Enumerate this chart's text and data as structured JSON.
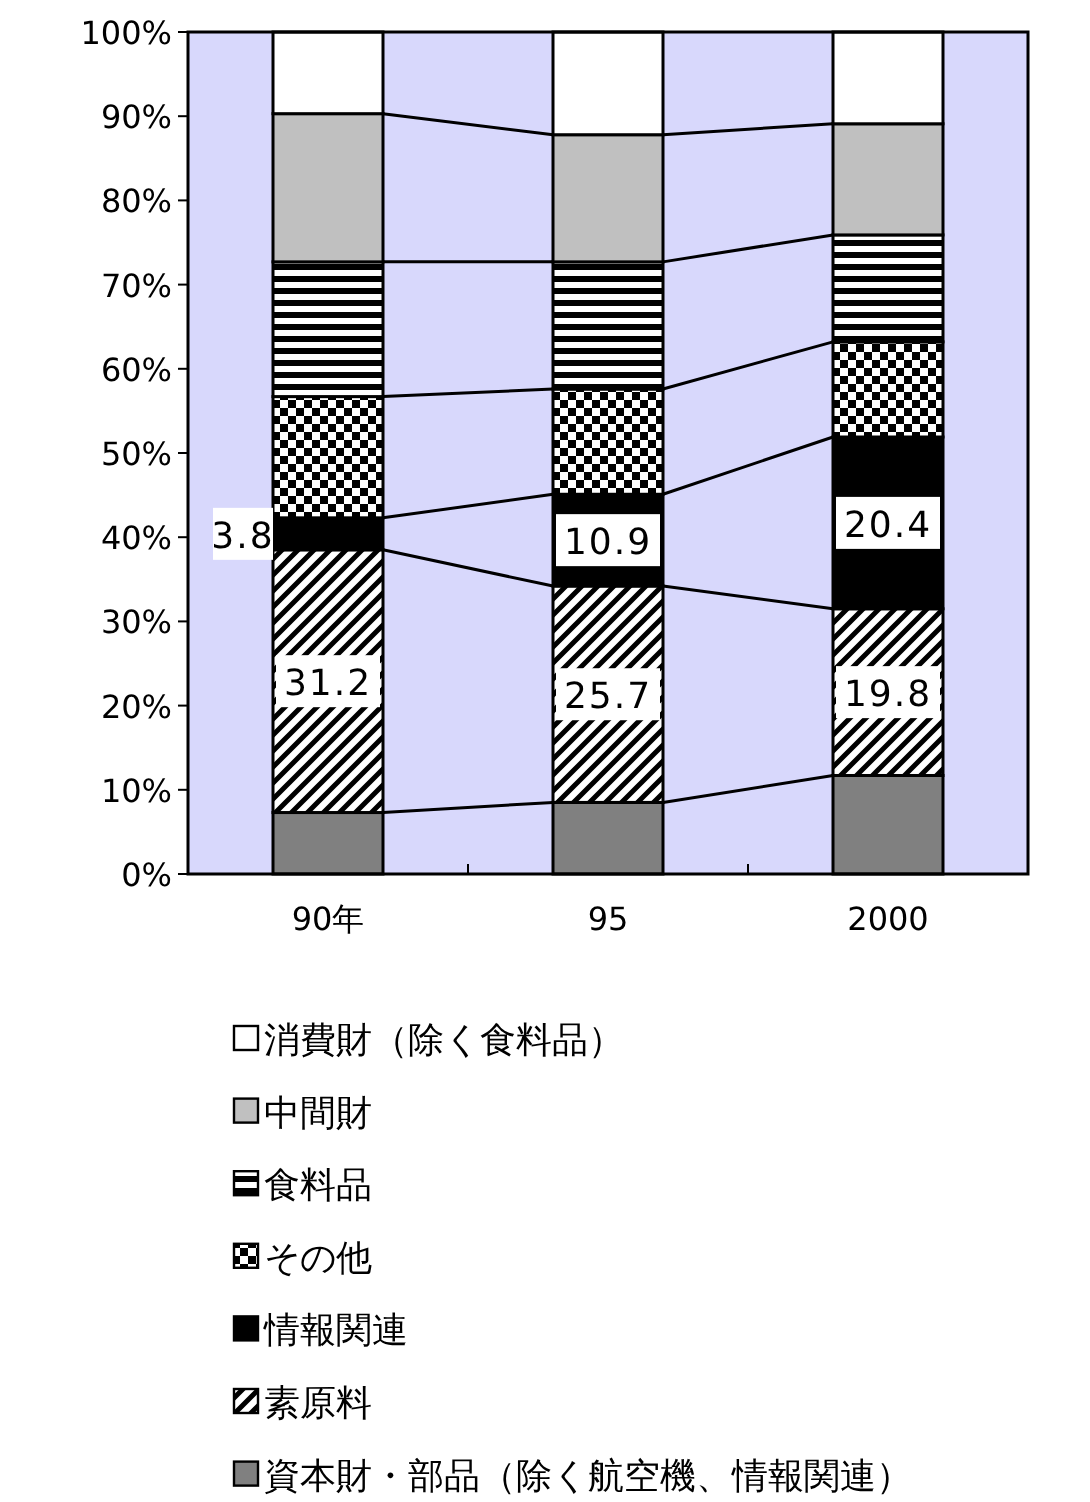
{
  "chart_data": {
    "type": "bar",
    "stacked": true,
    "categories": [
      "90年",
      "95",
      "2000"
    ],
    "ylim": [
      0,
      100
    ],
    "yticks": [
      {
        "value": 0,
        "label": "0%"
      },
      {
        "value": 10,
        "label": "10%"
      },
      {
        "value": 20,
        "label": "20%"
      },
      {
        "value": 30,
        "label": "30%"
      },
      {
        "value": 40,
        "label": "40%"
      },
      {
        "value": 50,
        "label": "50%"
      },
      {
        "value": 60,
        "label": "60%"
      },
      {
        "value": 70,
        "label": "70%"
      },
      {
        "value": 80,
        "label": "80%"
      },
      {
        "value": 90,
        "label": "90%"
      },
      {
        "value": 100,
        "label": "100%"
      }
    ],
    "legend": "bottom",
    "series": [
      {
        "name": "資本財・部品（除く航空機、情報関連）",
        "color": "#808080",
        "values": [
          7.3,
          8.5,
          11.7
        ]
      },
      {
        "name": "素原料",
        "color": "#000000",
        "values": [
          31.2,
          25.7,
          19.8
        ],
        "value_labels": [
          "31.2",
          "25.7",
          "19.8"
        ]
      },
      {
        "name": "情報関連",
        "color": "#000000",
        "values": [
          3.8,
          10.9,
          20.4
        ],
        "value_labels": [
          "3.8",
          "10.9",
          "20.4"
        ]
      },
      {
        "name": "その他",
        "color": "#000000",
        "values": [
          14.4,
          12.5,
          11.3
        ]
      },
      {
        "name": "食料品",
        "color": "#000000",
        "values": [
          16.0,
          15.1,
          12.7
        ]
      },
      {
        "name": "中間財",
        "color": "#c0c0c0",
        "values": [
          17.6,
          15.1,
          13.2
        ]
      },
      {
        "name": "消費財（除く食料品）",
        "color": "#ffffff",
        "values": [
          9.7,
          12.2,
          10.9
        ]
      }
    ]
  }
}
